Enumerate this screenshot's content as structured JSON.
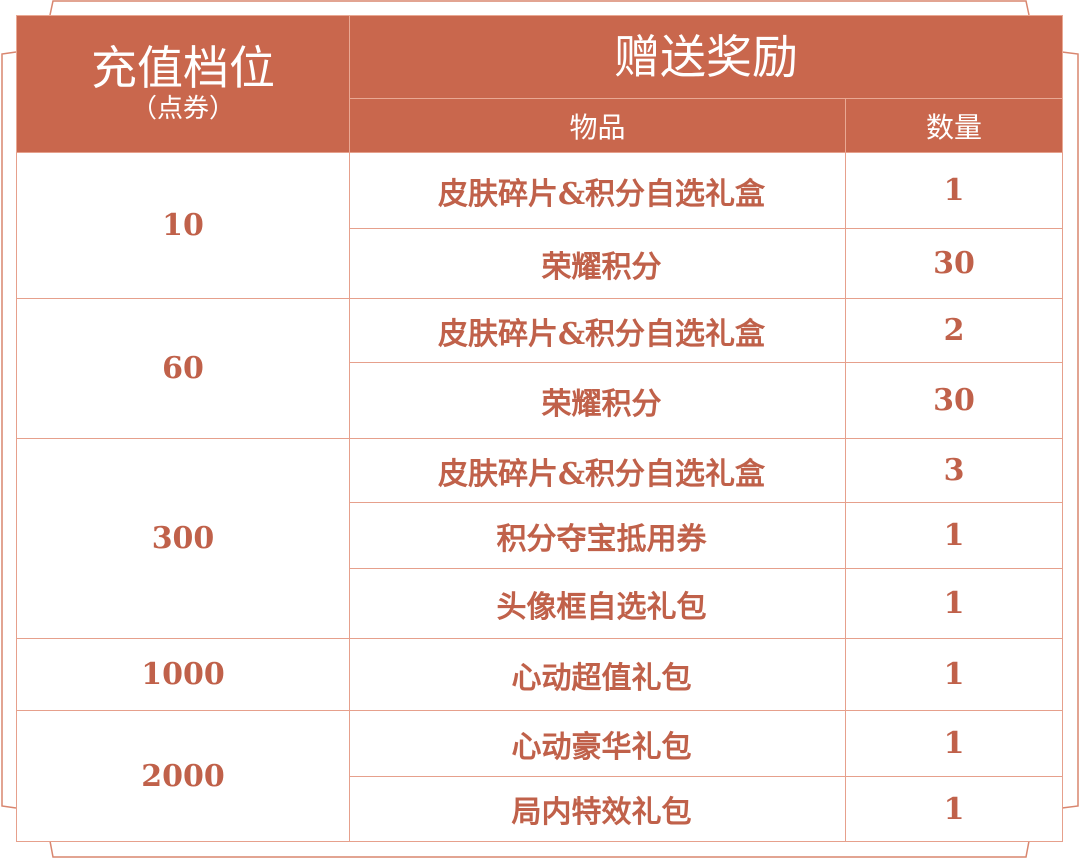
{
  "header": {
    "tier_title": "充值档位",
    "tier_unit": "（点券）",
    "reward_title": "赠送奖励",
    "item_col": "物品",
    "qty_col": "数量"
  },
  "colors": {
    "header_bg": "#c9674d",
    "text": "#c0614a",
    "border": "#e6a08c"
  },
  "tiers": [
    {
      "amount": "10",
      "rewards": [
        {
          "item": "皮肤碎片&积分自选礼盒",
          "qty": "1"
        },
        {
          "item": "荣耀积分",
          "qty": "30"
        }
      ]
    },
    {
      "amount": "60",
      "rewards": [
        {
          "item": "皮肤碎片&积分自选礼盒",
          "qty": "2"
        },
        {
          "item": "荣耀积分",
          "qty": "30"
        }
      ]
    },
    {
      "amount": "300",
      "rewards": [
        {
          "item": "皮肤碎片&积分自选礼盒",
          "qty": "3"
        },
        {
          "item": "积分夺宝抵用券",
          "qty": "1"
        },
        {
          "item": "头像框自选礼包",
          "qty": "1"
        }
      ]
    },
    {
      "amount": "1000",
      "rewards": [
        {
          "item": "心动超值礼包",
          "qty": "1"
        }
      ]
    },
    {
      "amount": "2000",
      "rewards": [
        {
          "item": "心动豪华礼包",
          "qty": "1"
        },
        {
          "item": "局内特效礼包",
          "qty": "1"
        }
      ]
    }
  ]
}
